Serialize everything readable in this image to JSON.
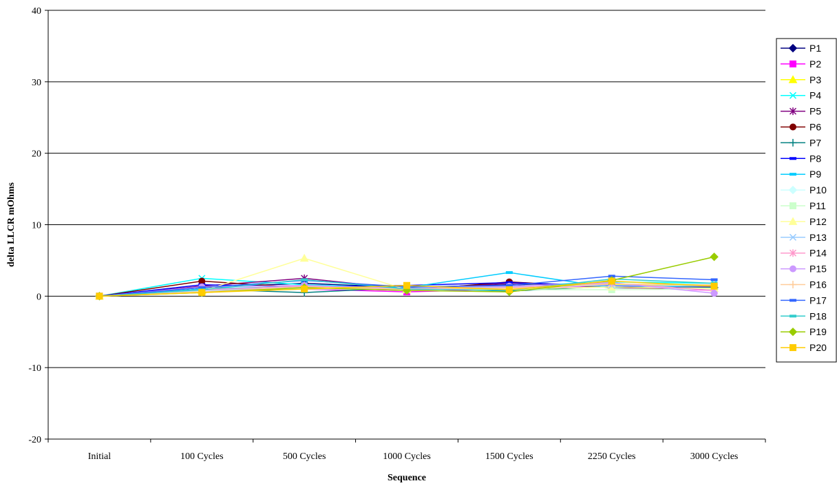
{
  "chart_data": {
    "type": "line",
    "title": "",
    "xlabel": "Sequence",
    "ylabel": "delta LLCR mOhms",
    "ylim": [
      -20,
      40
    ],
    "yticks": [
      -20,
      -10,
      0,
      10,
      20,
      30,
      40
    ],
    "grid": true,
    "legend_position": "right",
    "categories": [
      "Initial",
      "100 Cycles",
      "500 Cycles",
      "1000 Cycles",
      "1500 Cycles",
      "2250 Cycles",
      "3000 Cycles"
    ],
    "series": [
      {
        "name": "P1",
        "color": "#000080",
        "marker": "diamond",
        "values": [
          0,
          1.2,
          1.8,
          1.2,
          1.6,
          1.5,
          1.2
        ]
      },
      {
        "name": "P2",
        "color": "#ff00ff",
        "marker": "square",
        "values": [
          0,
          0.6,
          1.0,
          0.6,
          1.0,
          1.4,
          0.8
        ]
      },
      {
        "name": "P3",
        "color": "#ffff00",
        "marker": "triangle",
        "values": [
          0,
          0.8,
          1.5,
          1.0,
          1.2,
          1.6,
          1.4
        ]
      },
      {
        "name": "P4",
        "color": "#00ffff",
        "marker": "x",
        "values": [
          0,
          2.5,
          1.6,
          1.2,
          1.4,
          2.0,
          1.8
        ]
      },
      {
        "name": "P5",
        "color": "#800080",
        "marker": "star",
        "values": [
          0,
          1.4,
          2.5,
          1.0,
          1.8,
          1.5,
          1.3
        ]
      },
      {
        "name": "P6",
        "color": "#800000",
        "marker": "circle",
        "values": [
          0,
          2.1,
          1.2,
          0.8,
          2.0,
          1.2,
          1.0
        ]
      },
      {
        "name": "P7",
        "color": "#008080",
        "marker": "plus",
        "values": [
          0,
          1.0,
          0.5,
          1.2,
          0.7,
          1.4,
          1.2
        ]
      },
      {
        "name": "P8",
        "color": "#0000ff",
        "marker": "dash",
        "values": [
          0,
          1.6,
          1.3,
          1.5,
          1.9,
          1.4,
          1.1
        ]
      },
      {
        "name": "P9",
        "color": "#00ccff",
        "marker": "dash",
        "values": [
          0,
          1.0,
          1.4,
          1.2,
          3.3,
          1.2,
          1.5
        ]
      },
      {
        "name": "P10",
        "color": "#ccffff",
        "marker": "diamond",
        "values": [
          0,
          0.5,
          1.1,
          0.9,
          1.0,
          1.3,
          1.0
        ]
      },
      {
        "name": "P11",
        "color": "#ccffcc",
        "marker": "square",
        "values": [
          0,
          0.6,
          1.0,
          1.0,
          0.9,
          0.9,
          1.0
        ]
      },
      {
        "name": "P12",
        "color": "#ffff99",
        "marker": "triangle",
        "values": [
          0,
          0.7,
          5.3,
          0.9,
          1.0,
          1.3,
          1.1
        ]
      },
      {
        "name": "P13",
        "color": "#99ccff",
        "marker": "x",
        "values": [
          0,
          0.8,
          1.2,
          1.1,
          1.3,
          1.5,
          1.4
        ]
      },
      {
        "name": "P14",
        "color": "#ff99cc",
        "marker": "star",
        "values": [
          0,
          0.9,
          1.4,
          0.8,
          1.2,
          1.8,
          0.8
        ]
      },
      {
        "name": "P15",
        "color": "#cc99ff",
        "marker": "circle",
        "values": [
          0,
          1.3,
          1.5,
          1.1,
          1.4,
          1.9,
          0.4
        ]
      },
      {
        "name": "P16",
        "color": "#ffcc99",
        "marker": "plus",
        "values": [
          0,
          0.6,
          1.3,
          1.0,
          1.1,
          1.7,
          1.6
        ]
      },
      {
        "name": "P17",
        "color": "#3366ff",
        "marker": "dash",
        "values": [
          0,
          1.2,
          2.2,
          1.3,
          1.5,
          2.8,
          2.3
        ]
      },
      {
        "name": "P18",
        "color": "#33cccc",
        "marker": "dash",
        "values": [
          0,
          0.9,
          2.3,
          1.0,
          0.8,
          2.4,
          1.8
        ]
      },
      {
        "name": "P19",
        "color": "#99cc00",
        "marker": "diamond",
        "values": [
          0,
          0.5,
          1.2,
          0.8,
          0.6,
          2.2,
          5.5
        ]
      },
      {
        "name": "P20",
        "color": "#ffcc00",
        "marker": "square",
        "values": [
          0,
          0.5,
          1.0,
          1.5,
          0.9,
          2.1,
          1.4
        ]
      }
    ]
  }
}
